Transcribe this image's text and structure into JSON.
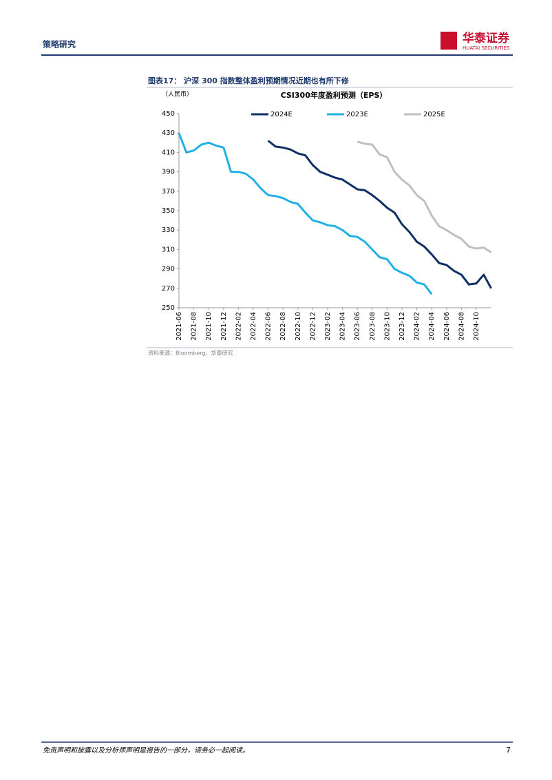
{
  "header": {
    "section": "策略研究",
    "brand": "华泰证券",
    "brand_en": "HUATAI SECURITIES"
  },
  "figure": {
    "caption": "图表17：  沪深 300 指数整体盈利预期情况近期也有所下修",
    "unit": "（人民币）",
    "source": "资料来源：Bloomberg，华泰研究"
  },
  "chart_data": {
    "type": "line",
    "title": "CSI300年度盈利预测（EPS）",
    "x": [
      "2021-06",
      "2021-07",
      "2021-08",
      "2021-09",
      "2021-10",
      "2021-11",
      "2021-12",
      "2022-01",
      "2022-02",
      "2022-03",
      "2022-04",
      "2022-05",
      "2022-06",
      "2022-07",
      "2022-08",
      "2022-09",
      "2022-10",
      "2022-11",
      "2022-12",
      "2023-01",
      "2023-02",
      "2023-03",
      "2023-04",
      "2023-05",
      "2023-06",
      "2023-07",
      "2023-08",
      "2023-09",
      "2023-10",
      "2023-11",
      "2023-12",
      "2024-01",
      "2024-02",
      "2024-03",
      "2024-04",
      "2024-05",
      "2024-06",
      "2024-07",
      "2024-08",
      "2024-09",
      "2024-10",
      "2024-11",
      "2024-12"
    ],
    "xticks": [
      "2021-06",
      "2021-08",
      "2021-10",
      "2021-12",
      "2022-02",
      "2022-04",
      "2022-06",
      "2022-08",
      "2022-10",
      "2022-12",
      "2023-02",
      "2023-04",
      "2023-06",
      "2023-08",
      "2023-10",
      "2023-12",
      "2024-02",
      "2024-04",
      "2024-06",
      "2024-08",
      "2024-10"
    ],
    "series": [
      {
        "name": "2024E",
        "color": "#0d2f66",
        "values": [
          null,
          null,
          null,
          null,
          null,
          null,
          null,
          null,
          null,
          null,
          null,
          null,
          422,
          416,
          415,
          413,
          409,
          407,
          397,
          390,
          387,
          384,
          382,
          377,
          372,
          371,
          366,
          360,
          353,
          348,
          336,
          328,
          318,
          313,
          305,
          296,
          294,
          288,
          284,
          274,
          275,
          284,
          270
        ]
      },
      {
        "name": "2023E",
        "color": "#1fb0e6",
        "values": [
          430,
          410,
          412,
          418,
          420,
          417,
          415,
          390,
          390,
          388,
          382,
          373,
          366,
          365,
          363,
          359,
          357,
          348,
          340,
          338,
          335,
          334,
          330,
          324,
          323,
          318,
          310,
          302,
          300,
          290,
          286,
          283,
          276,
          274,
          264,
          null,
          null,
          null,
          null,
          null,
          null,
          null,
          null
        ]
      },
      {
        "name": "2025E",
        "color": "#bfbfbf",
        "values": [
          null,
          null,
          null,
          null,
          null,
          null,
          null,
          null,
          null,
          null,
          null,
          null,
          null,
          null,
          null,
          null,
          null,
          null,
          null,
          null,
          null,
          null,
          null,
          null,
          421,
          419,
          418,
          408,
          405,
          390,
          382,
          376,
          366,
          360,
          345,
          334,
          330,
          325,
          321,
          313,
          311,
          312,
          307
        ]
      }
    ],
    "ylim": [
      250,
      450
    ],
    "yticks": [
      250,
      270,
      290,
      310,
      330,
      350,
      370,
      390,
      410,
      430,
      450
    ]
  },
  "footer": {
    "disclaimer": "免责声明和披露以及分析师声明是报告的一部分，请务必一起阅读。",
    "page": 7
  }
}
